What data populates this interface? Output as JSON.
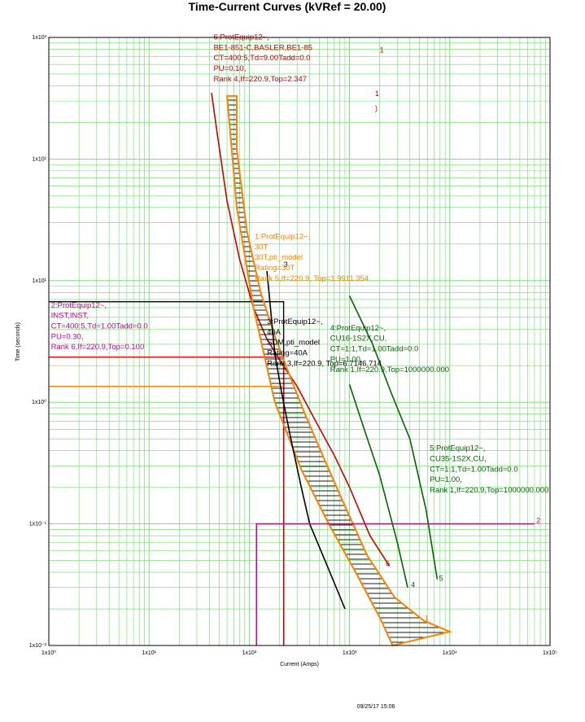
{
  "chart_data": {
    "type": "line",
    "title": "Time-Current Curves (kVRef = 20.00)",
    "xlabel": "Current (Amps)",
    "ylabel": "Time (seconds)",
    "x_scale": "log",
    "y_scale": "log",
    "xlim": [
      1,
      100000
    ],
    "ylim": [
      0.01,
      1000
    ],
    "grid": true,
    "x_ticks": [
      "1x10⁰",
      "1x10¹",
      "1x10²",
      "1x10³",
      "1x10⁴",
      "1x10⁵"
    ],
    "y_ticks": [
      "1x10⁻²",
      "1x10⁻¹",
      "1x10⁰",
      "1x10¹",
      "1x10²",
      "1x10³"
    ],
    "timestamp": "09/25/17 15:06",
    "series": [
      {
        "name": "6",
        "color": "#cc0000",
        "x": [
          42,
          48,
          60,
          80,
          110,
          150,
          210,
          300,
          450,
          700,
          1000,
          1600,
          2500
        ],
        "y": [
          350,
          160,
          45,
          15,
          6,
          3.3,
          2.1,
          1.35,
          0.72,
          0.37,
          0.2,
          0.08,
          0.045
        ]
      },
      {
        "name": "1",
        "color": "#ff8000",
        "fill": "hatched",
        "x": [
          60,
          75,
          75,
          95,
          130,
          180,
          250,
          360,
          560,
          900,
          1500,
          2800,
          5500,
          10000,
          2700,
          2000,
          1150,
          620,
          330,
          180,
          110,
          75,
          60
        ],
        "y": [
          330,
          330,
          120,
          25,
          8,
          3.5,
          1.7,
          0.8,
          0.34,
          0.14,
          0.055,
          0.025,
          0.016,
          0.013,
          0.01,
          0.017,
          0.04,
          0.1,
          0.28,
          1.0,
          6.0,
          40,
          330
        ]
      },
      {
        "name": "3",
        "color": "#000000",
        "x": [
          150,
          180,
          210,
          260,
          330,
          400,
          600,
          900
        ],
        "y": [
          12,
          2.5,
          1.2,
          0.5,
          0.2,
          0.1,
          0.045,
          0.02
        ]
      },
      {
        "name": "4",
        "color": "#006600",
        "x": [
          1000,
          1400,
          2000,
          3000,
          3800
        ],
        "y": [
          1.4,
          0.6,
          0.25,
          0.07,
          0.03
        ]
      },
      {
        "name": "5",
        "color": "#006600",
        "x": [
          1000,
          1700,
          2600,
          4000,
          5800,
          7500
        ],
        "y": [
          7.5,
          3,
          1.2,
          0.5,
          0.13,
          0.035
        ]
      },
      {
        "name": "2",
        "color": "#cc0099",
        "x": [
          118,
          118,
          70000
        ],
        "y": [
          0.01,
          0.1,
          0.1
        ]
      }
    ],
    "reference_lines": [
      {
        "color": "#000000",
        "x": [
          1,
          220,
          220
        ],
        "y": [
          6.71,
          6.71,
          0.01
        ]
      },
      {
        "color": "#cc0000",
        "x": [
          1,
          220.9
        ],
        "y": [
          2.347,
          2.347
        ]
      },
      {
        "color": "#ff8000",
        "x": [
          1,
          220.9
        ],
        "y": [
          1.35,
          1.35
        ]
      },
      {
        "color": "#cc0000",
        "x": [
          220.9,
          220.9
        ],
        "y": [
          0.01,
          2.347
        ]
      }
    ],
    "curve_labels": [
      {
        "text": "1",
        "color": "#cc0000",
        "x": 2000,
        "y": 750
      },
      {
        "text": "1",
        "color": "#cc0000",
        "x": 1800,
        "y": 330
      },
      {
        "text": ")",
        "color": "#cc0000",
        "x": 1800,
        "y": 250
      },
      {
        "text": "3",
        "color": "#000000",
        "x": 220,
        "y": 13
      },
      {
        "text": "6",
        "color": "#cc0000",
        "x": 2300,
        "y": 0.045
      },
      {
        "text": "4",
        "color": "#006600",
        "x": 4100,
        "y": 0.03
      },
      {
        "text": "5",
        "color": "#006600",
        "x": 7800,
        "y": 0.034
      },
      {
        "text": "1",
        "color": "#ff8000",
        "x": 5600,
        "y": 0.016
      },
      {
        "text": "2",
        "color": "#cc0099",
        "x": 73000,
        "y": 0.102
      }
    ],
    "annotations": [
      {
        "color": "#cc0000",
        "x": 44,
        "y": 960,
        "lines": [
          "6:ProtEquip12~,",
          "BE1-851-C,BASLER,BE1-85",
          "CT=400:5,Td=9.00Tadd=0.0",
          "PU=0.10,",
          "Rank 4,If=220.9,Top=2.347"
        ]
      },
      {
        "color": "#ff8000",
        "x": 113,
        "y": 22,
        "lines": [
          "1:ProtEquip12~,",
          "30T",
          "30T,pti_model",
          "Rating=30T",
          "Rank 5,If=220.9, Top=1.9911.354"
        ]
      },
      {
        "color": "#000000",
        "x": 150,
        "y": 4.4,
        "lines": [
          "3:ProtEquip12~,",
          "40A",
          "SDM,pti_model",
          "Rating=40A",
          "Rank 3,If=220.9, Top=6.7146.714"
        ]
      },
      {
        "color": "#cc0099",
        "x": 1.05,
        "y": 6.0,
        "lines": [
          "2:ProtEquip12~,",
          "INST,INST,",
          "CT=400:5,Td=1.00Tadd=0.0",
          "PU=0.30,",
          "Rank 6,If=220.9,Top=0.100"
        ]
      },
      {
        "color": "#006600",
        "x": 640,
        "y": 3.9,
        "lines": [
          "4:ProtEquip12~,",
          "CU16-1S2X,CU,",
          "CT=1:1,Td=1.00Tadd=0.0",
          "PU=1.00,",
          "Rank 1,If=220.9,Top=1000000.000"
        ]
      },
      {
        "color": "#006600",
        "x": 6300,
        "y": 0.4,
        "lines": [
          "5:ProtEquip12~,",
          "CU35-1S2X,CU,",
          "CT=1:1,Td=1.00Tadd=0.0",
          "PU=1.00,",
          "Rank 1,If=220.9,Top=1000000.000"
        ]
      }
    ]
  }
}
